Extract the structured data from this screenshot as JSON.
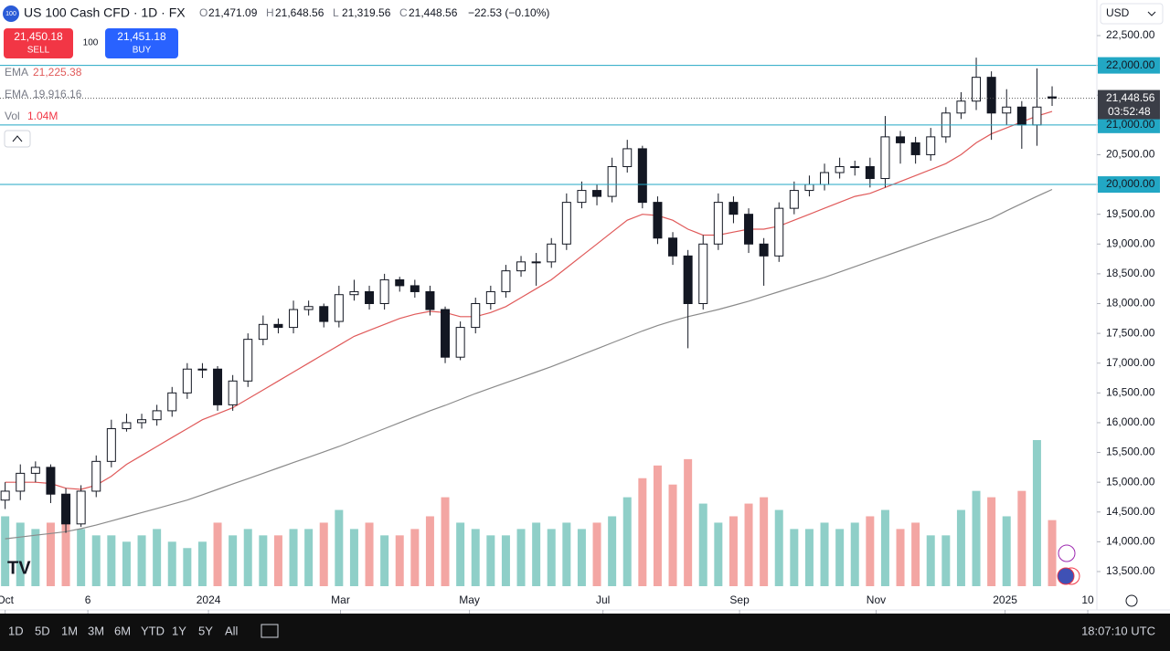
{
  "header": {
    "badge": "100",
    "symbol": "US 100 Cash CFD · 1D · FX",
    "ohlc": [
      {
        "key": "O",
        "value": "21,471.09"
      },
      {
        "key": "H",
        "value": "21,648.56"
      },
      {
        "key": "L",
        "value": "21,319.56"
      },
      {
        "key": "C",
        "value": "21,448.56"
      }
    ],
    "change": "−22.53 (−0.10%)"
  },
  "trade": {
    "sell_price": "21,450.18",
    "sell": "SELL",
    "spread": "100",
    "buy_price": "21,451.18",
    "buy": "BUY"
  },
  "indicators": [
    {
      "name": "EMA",
      "value": "21,225.38"
    },
    {
      "name": "EMA",
      "value": "19,916.16"
    },
    {
      "name": "Vol",
      "value": "1.04M"
    }
  ],
  "currency": "USD",
  "toolbar": {
    "ranges": [
      "1D",
      "5D",
      "1M",
      "3M",
      "6M",
      "YTD",
      "1Y",
      "5Y",
      "All"
    ],
    "clock": "18:07:10 UTC"
  },
  "chart_data": {
    "type": "candlestick",
    "up_color": "#089981",
    "down_color": "#f23645",
    "volume_up_color": "#8fcfc8",
    "volume_down_color": "#f3a6a3",
    "open": [
      14700,
      14850,
      15150,
      15250,
      14800,
      14300,
      14850,
      15350,
      15900,
      16000,
      16050,
      16200,
      16500,
      16900,
      16900,
      16300,
      16700,
      17400,
      17650,
      17600,
      17900,
      17950,
      17700,
      18150,
      18200,
      18000,
      18400,
      18300,
      18200,
      17900,
      17100,
      17600,
      18000,
      18200,
      18550,
      18700,
      18700,
      19000,
      19700,
      19900,
      19800,
      20300,
      20600,
      19700,
      19100,
      18800,
      18000,
      19000,
      19700,
      19500,
      19000,
      18800,
      19600,
      19900,
      20000,
      20200,
      20300,
      20300,
      20100,
      20800,
      20700,
      20500,
      20800,
      21200,
      21400,
      21800,
      21200,
      21300,
      21000,
      21471.09
    ],
    "high": [
      15000,
      15300,
      15350,
      15300,
      14900,
      14950,
      15450,
      16050,
      16150,
      16150,
      16300,
      16600,
      17000,
      17000,
      16950,
      16800,
      17500,
      17800,
      17750,
      18050,
      18050,
      18000,
      18300,
      18400,
      18300,
      18500,
      18450,
      18400,
      18300,
      17950,
      17700,
      18100,
      18300,
      18650,
      18800,
      18850,
      19100,
      19850,
      20050,
      20000,
      20450,
      20750,
      20650,
      19800,
      19200,
      18900,
      19150,
      19850,
      19800,
      19600,
      19100,
      19700,
      20050,
      20150,
      20350,
      20450,
      20400,
      20450,
      21150,
      20900,
      20800,
      20950,
      21300,
      21550,
      22130,
      21900,
      21600,
      21400,
      21950,
      21648.56
    ],
    "low": [
      14550,
      14700,
      15000,
      14650,
      14150,
      14250,
      14750,
      15250,
      15850,
      15900,
      15950,
      16100,
      16400,
      16750,
      16200,
      16200,
      16600,
      17300,
      17500,
      17500,
      17800,
      17600,
      17600,
      18050,
      17900,
      17900,
      18200,
      18100,
      17800,
      17000,
      17050,
      17500,
      17900,
      18100,
      18450,
      18300,
      18600,
      18900,
      19600,
      19650,
      19700,
      20200,
      19600,
      19000,
      18650,
      17250,
      17900,
      18900,
      19350,
      18850,
      18300,
      18700,
      19500,
      19800,
      19900,
      20100,
      20150,
      19950,
      19950,
      20350,
      20350,
      20400,
      20700,
      21100,
      21250,
      20750,
      21000,
      20600,
      20650,
      21319.56
    ],
    "close": [
      14850,
      15150,
      15250,
      14800,
      14300,
      14850,
      15350,
      15900,
      16000,
      16050,
      16200,
      16500,
      16900,
      16900,
      16300,
      16700,
      17400,
      17650,
      17600,
      17900,
      17950,
      17700,
      18150,
      18200,
      18000,
      18400,
      18300,
      18200,
      17900,
      17100,
      17600,
      18000,
      18200,
      18550,
      18700,
      18700,
      19000,
      19700,
      19900,
      19800,
      20300,
      20600,
      19700,
      19100,
      18800,
      18000,
      19000,
      19700,
      19500,
      19000,
      18800,
      19600,
      19900,
      20000,
      20200,
      20300,
      20300,
      20100,
      20800,
      20700,
      20500,
      20800,
      21200,
      21400,
      21800,
      21200,
      21300,
      21000,
      21300,
      21448.56
    ],
    "volume": [
      1.1,
      1.0,
      0.9,
      1.0,
      1.1,
      0.9,
      0.8,
      0.8,
      0.7,
      0.8,
      0.9,
      0.7,
      0.6,
      0.7,
      1.0,
      0.8,
      0.9,
      0.8,
      0.8,
      0.9,
      0.9,
      1.0,
      1.2,
      0.9,
      1.0,
      0.8,
      0.8,
      0.9,
      1.1,
      1.4,
      1.0,
      0.9,
      0.8,
      0.8,
      0.9,
      1.0,
      0.9,
      1.0,
      0.9,
      1.0,
      1.1,
      1.4,
      1.7,
      1.9,
      1.6,
      2.0,
      1.3,
      1.0,
      1.1,
      1.3,
      1.4,
      1.2,
      0.9,
      0.9,
      1.0,
      0.9,
      1.0,
      1.1,
      1.2,
      0.9,
      1.0,
      0.8,
      0.8,
      1.2,
      1.5,
      1.4,
      1.1,
      1.5,
      2.3,
      1.04
    ],
    "series": [
      {
        "name": "EMA",
        "color": "#e05a5a",
        "values": [
          15000,
          15000,
          15000,
          14980,
          14900,
          14880,
          14950,
          15100,
          15300,
          15450,
          15600,
          15750,
          15900,
          16050,
          16150,
          16250,
          16400,
          16550,
          16700,
          16850,
          17000,
          17150,
          17300,
          17450,
          17550,
          17650,
          17750,
          17820,
          17870,
          17850,
          17780,
          17780,
          17850,
          17950,
          18100,
          18250,
          18400,
          18600,
          18800,
          19000,
          19200,
          19400,
          19500,
          19480,
          19400,
          19250,
          19150,
          19150,
          19200,
          19250,
          19250,
          19300,
          19400,
          19500,
          19600,
          19700,
          19800,
          19850,
          19950,
          20050,
          20150,
          20250,
          20350,
          20500,
          20700,
          20850,
          20950,
          21050,
          21150,
          21225.38
        ]
      },
      {
        "name": "EMA",
        "color": "#8a8a8a",
        "values": [
          14050,
          14080,
          14110,
          14140,
          14170,
          14220,
          14280,
          14350,
          14420,
          14490,
          14560,
          14630,
          14700,
          14790,
          14880,
          14970,
          15060,
          15150,
          15240,
          15330,
          15420,
          15510,
          15600,
          15700,
          15800,
          15900,
          16000,
          16100,
          16200,
          16290,
          16390,
          16490,
          16580,
          16670,
          16760,
          16850,
          16940,
          17040,
          17140,
          17240,
          17340,
          17440,
          17540,
          17630,
          17710,
          17780,
          17840,
          17900,
          17970,
          18040,
          18120,
          18200,
          18280,
          18360,
          18440,
          18530,
          18620,
          18710,
          18800,
          18890,
          18980,
          19070,
          19160,
          19250,
          19340,
          19430,
          19560,
          19680,
          19800,
          19916.16
        ]
      }
    ],
    "levels": [
      {
        "value": 22000,
        "label": "22,000.00"
      },
      {
        "value": 21000,
        "label": "21,000.00"
      },
      {
        "value": 20000,
        "label": "20,000.00"
      }
    ],
    "level_color": "#22a7c4",
    "last": {
      "value": 21448.56,
      "label": "21,448.56",
      "countdown": "03:52:48"
    },
    "xlim": [
      -0.34,
      71.95
    ],
    "ylim": [
      12856,
      23098
    ],
    "xticks": [
      {
        "value": 0.0,
        "label": "Oct"
      },
      {
        "value": 5.45,
        "label": "6"
      },
      {
        "value": 13.4,
        "label": "2024"
      },
      {
        "value": 22.1,
        "label": "Mar"
      },
      {
        "value": 30.6,
        "label": "May"
      },
      {
        "value": 39.4,
        "label": "Jul"
      },
      {
        "value": 48.4,
        "label": "Sep"
      },
      {
        "value": 57.4,
        "label": "Nov"
      },
      {
        "value": 65.9,
        "label": "2025"
      },
      {
        "value": 71.35,
        "label": "10"
      }
    ],
    "yticks": [
      {
        "value": 22500,
        "label": "22,500.00"
      },
      {
        "value": 22000,
        "label": "22,000.00"
      },
      {
        "value": 21500,
        "label": "21,500.00"
      },
      {
        "value": 21000,
        "label": "21,000.00"
      },
      {
        "value": 20500,
        "label": "20,500.00"
      },
      {
        "value": 20000,
        "label": "20,000.00"
      },
      {
        "value": 19500,
        "label": "19,500.00"
      },
      {
        "value": 19000,
        "label": "19,000.00"
      },
      {
        "value": 18500,
        "label": "18,500.00"
      },
      {
        "value": 18000,
        "label": "18,000.00"
      },
      {
        "value": 17500,
        "label": "17,500.00"
      },
      {
        "value": 17000,
        "label": "17,000.00"
      },
      {
        "value": 16500,
        "label": "16,500.00"
      },
      {
        "value": 16000,
        "label": "16,000.00"
      },
      {
        "value": 15500,
        "label": "15,500.00"
      },
      {
        "value": 15000,
        "label": "15,000.00"
      },
      {
        "value": 14500,
        "label": "14,500.00"
      },
      {
        "value": 14000,
        "label": "14,000.00"
      },
      {
        "value": 13500,
        "label": "13,500.00"
      }
    ]
  }
}
